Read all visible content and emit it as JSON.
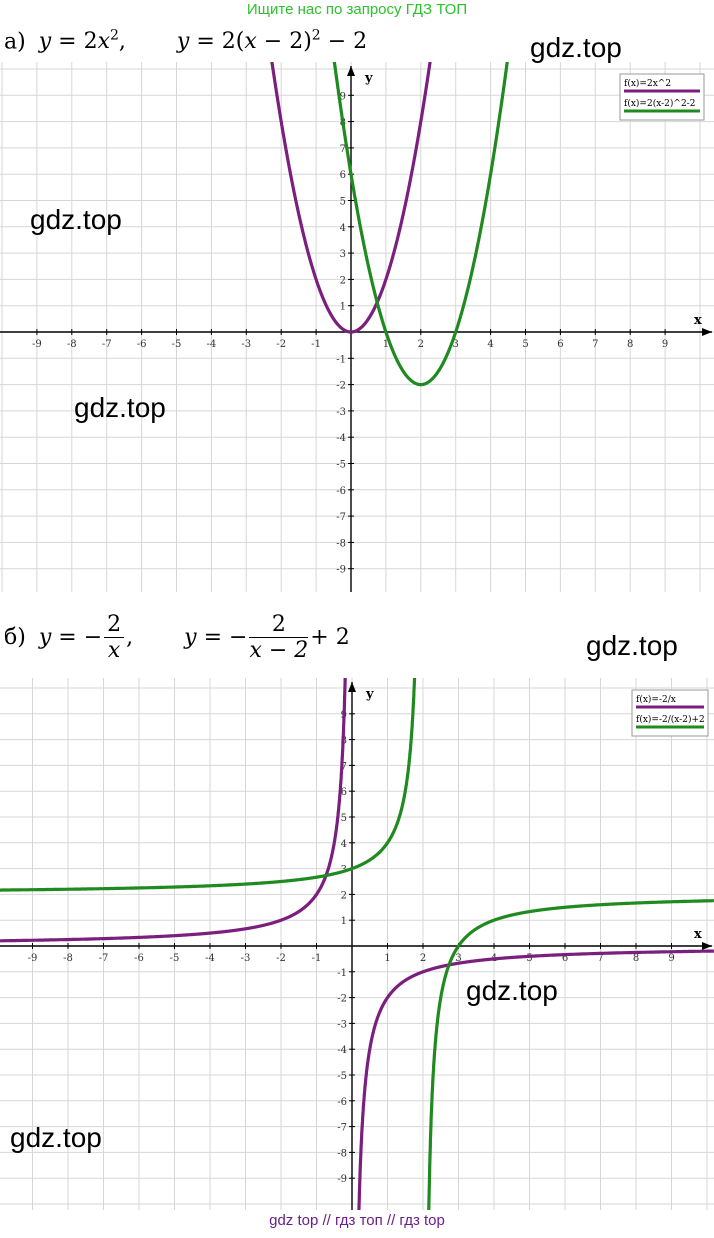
{
  "banner": "Ищите нас по запросу ГДЗ ТОП",
  "footer": "gdz top  //  гдз топ  //  гдз top",
  "watermarks": [
    "gdz.top",
    "gdz.top",
    "gdz.top",
    "gdz.top",
    "gdz.top",
    "gdz.top"
  ],
  "part_a": {
    "label": "а)",
    "eq1": {
      "lhs": "y",
      "eq": "= 2",
      "var": "x",
      "exp": "2",
      "tail": ","
    },
    "eq2": {
      "lhs": "y",
      "eq": "= 2(",
      "var": "x",
      "mid": " − 2)",
      "exp": "2",
      "tail": " − 2"
    }
  },
  "part_b": {
    "label": "б)",
    "eq1": {
      "lhs": "y",
      "eq": "= −",
      "num": "2",
      "den": "x",
      "tail": ","
    },
    "eq2": {
      "lhs": "y",
      "eq": "= −",
      "num": "2",
      "den": "x − 2",
      "tail": "+ 2"
    }
  },
  "chart_data": [
    {
      "type": "line",
      "xlabel": "x",
      "ylabel": "y",
      "xlim": [
        -10,
        10
      ],
      "ylim": [
        -10,
        10
      ],
      "x_ticks": [
        -9,
        -8,
        -7,
        -6,
        -5,
        -4,
        -3,
        -2,
        -1,
        1,
        2,
        3,
        4,
        5,
        6,
        7,
        8,
        9
      ],
      "y_ticks": [
        -9,
        -8,
        -7,
        -6,
        -5,
        -4,
        -3,
        -2,
        -1,
        1,
        2,
        3,
        4,
        5,
        6,
        7,
        8,
        9
      ],
      "grid": true,
      "legend_position": "top-right",
      "series": [
        {
          "name": "f(x)=2x^2",
          "color": "#7b1f7e",
          "formula": "2x^2",
          "x": [
            -2.2,
            -2,
            -1.5,
            -1,
            -0.5,
            0,
            0.5,
            1,
            1.5,
            2,
            2.2
          ],
          "y": [
            9.68,
            8,
            4.5,
            2,
            0.5,
            0,
            0.5,
            2,
            4.5,
            8,
            9.68
          ]
        },
        {
          "name": "f(x)=2(x-2)^2-2",
          "color": "#1f8a1f",
          "formula": "2(x-2)^2-2",
          "x": [
            -0.45,
            0,
            0.5,
            1,
            1.5,
            2,
            2.5,
            3,
            3.5,
            4,
            4.45
          ],
          "y": [
            10.01,
            6,
            2.5,
            0,
            -1.5,
            -2,
            -1.5,
            0,
            2.5,
            6,
            10.01
          ]
        }
      ]
    },
    {
      "type": "line",
      "xlabel": "x",
      "ylabel": "y",
      "xlim": [
        -10,
        10
      ],
      "ylim": [
        -10,
        10
      ],
      "x_ticks": [
        -9,
        -8,
        -7,
        -6,
        -5,
        -4,
        -3,
        -2,
        -1,
        1,
        2,
        3,
        4,
        5,
        6,
        7,
        8,
        9
      ],
      "y_ticks": [
        -9,
        -8,
        -7,
        -6,
        -5,
        -4,
        -3,
        -2,
        -1,
        1,
        2,
        3,
        4,
        5,
        6,
        7,
        8,
        9
      ],
      "grid": true,
      "legend_position": "top-right",
      "series": [
        {
          "name": "f(x)=-2/x",
          "color": "#7b1f7e",
          "formula": "-2/x",
          "x": [
            -10,
            -5,
            -2,
            -1,
            -0.5,
            -0.2,
            0.2,
            0.5,
            1,
            2,
            5,
            10
          ],
          "y": [
            0.2,
            0.4,
            1,
            2,
            4,
            10,
            -10,
            -4,
            -2,
            -1,
            -0.4,
            -0.2
          ]
        },
        {
          "name": "f(x)=-2/(x-2)+2",
          "color": "#1f8a1f",
          "formula": "-2/(x-2)+2",
          "x": [
            -10,
            -5,
            -2,
            0,
            1,
            1.5,
            1.8,
            2.2,
            2.5,
            3,
            4,
            6,
            10
          ],
          "y": [
            2.17,
            2.29,
            2.5,
            3,
            4,
            6,
            12,
            -8,
            -2,
            0,
            1,
            1.5,
            1.75
          ]
        }
      ]
    }
  ]
}
